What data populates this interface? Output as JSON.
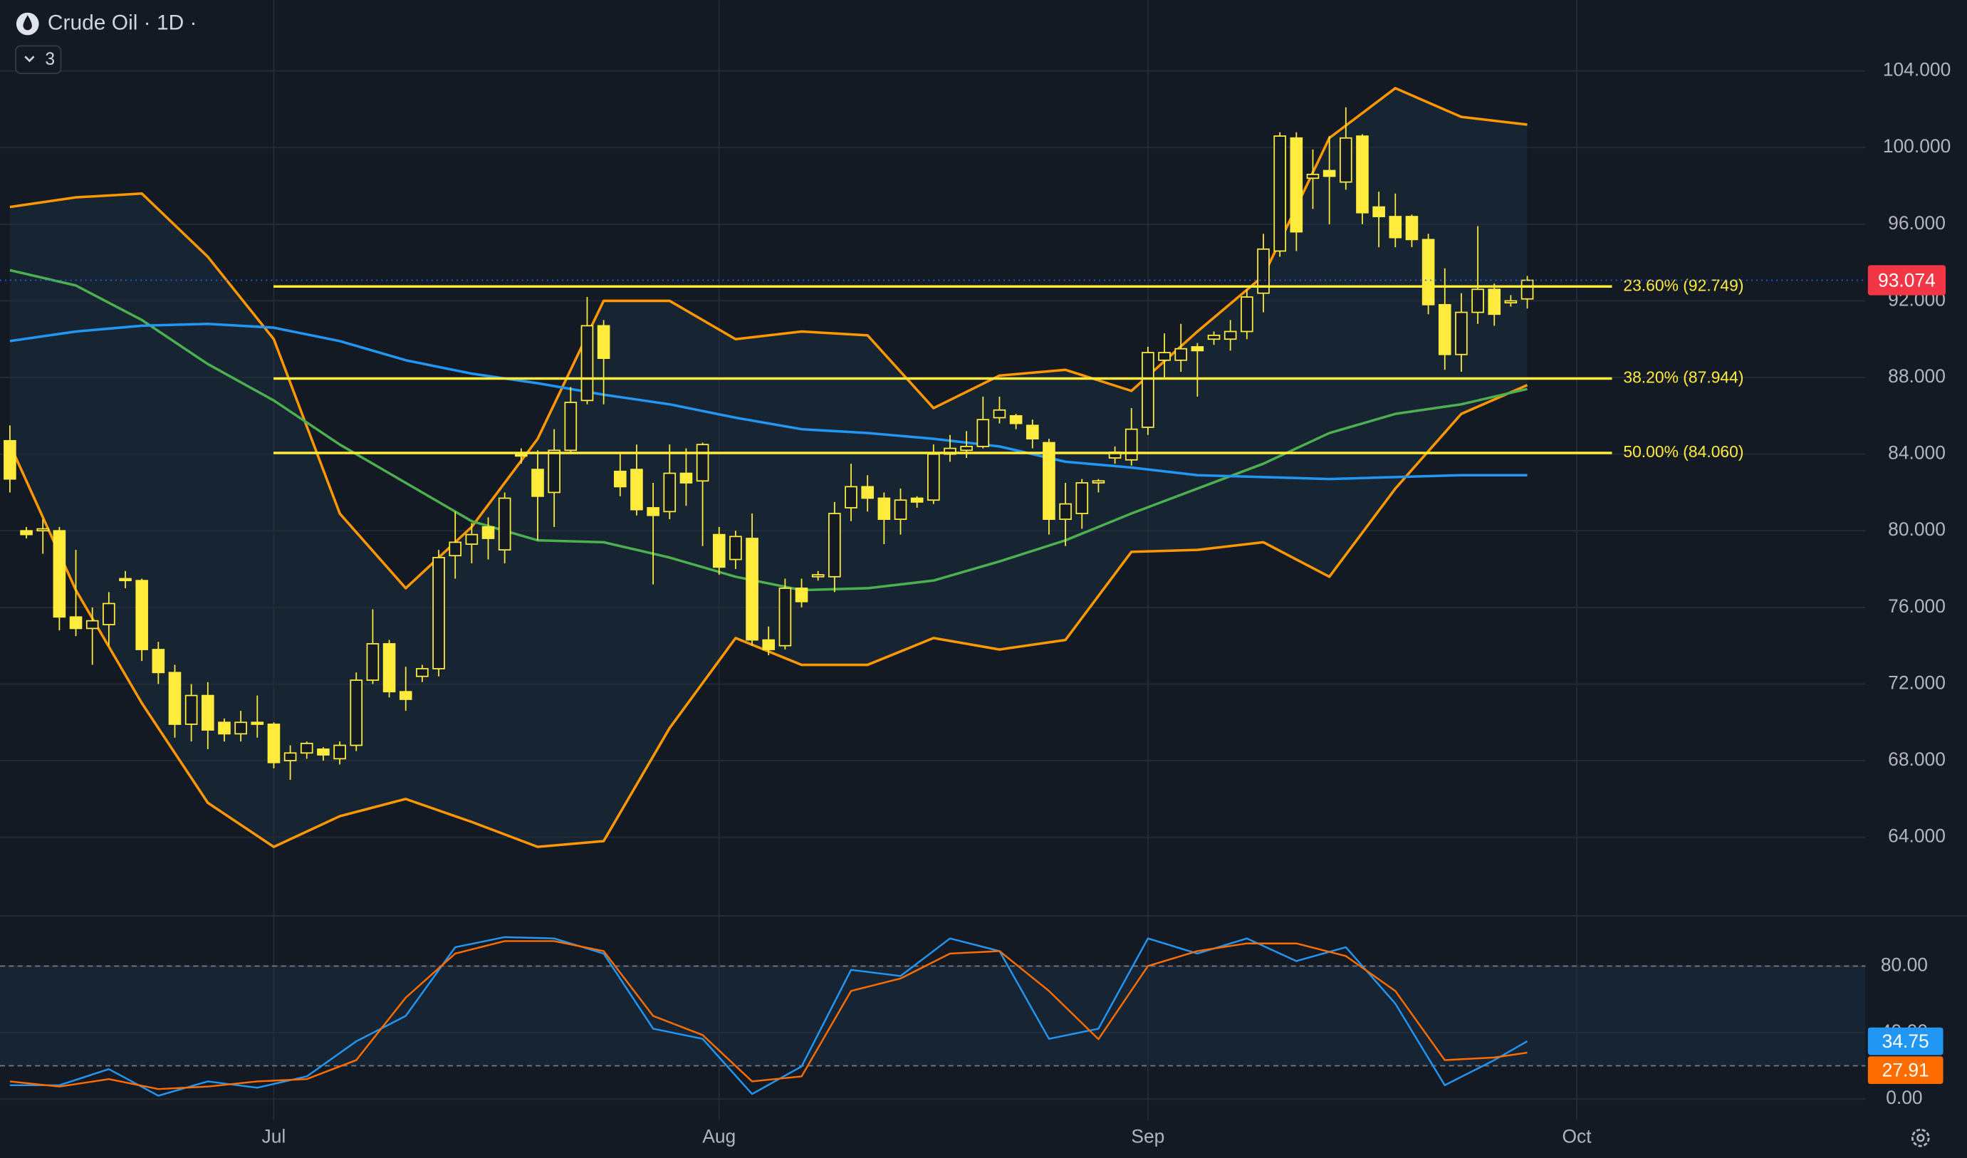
{
  "header": {
    "title": "Crude Oil · 1D ·",
    "indicators": 3
  },
  "chart_data": [
    {
      "type": "candlestick",
      "xlim": [
        -0.6,
        112.5
      ],
      "xticks": [
        {
          "value": 16,
          "label": "Jul"
        },
        {
          "value": 43,
          "label": "Aug"
        },
        {
          "value": 69,
          "label": "Sep"
        },
        {
          "value": 95,
          "label": "Oct"
        }
      ],
      "ylim": [
        59.9,
        107.7
      ],
      "yticks": [
        {
          "value": 64,
          "label": "64.000"
        },
        {
          "value": 68,
          "label": "68.000"
        },
        {
          "value": 72,
          "label": "72.000"
        },
        {
          "value": 76,
          "label": "76.000"
        },
        {
          "value": 80,
          "label": "80.000"
        },
        {
          "value": 84,
          "label": "84.000"
        },
        {
          "value": 88,
          "label": "88.000"
        },
        {
          "value": 92,
          "label": "92.000"
        },
        {
          "value": 96,
          "label": "96.000"
        },
        {
          "value": 100,
          "label": "100.000"
        },
        {
          "value": 104,
          "label": "104.000"
        }
      ],
      "grid": true,
      "up_color": "#131a24",
      "down_color": "#ffeb3b",
      "outline_color": "#ffeb3b",
      "open": [
        84.7,
        80.0,
        80.0,
        80.0,
        75.5,
        74.9,
        75.1,
        77.5,
        77.4,
        73.8,
        72.6,
        69.9,
        71.4,
        70.0,
        69.4,
        70.0,
        69.9,
        68.0,
        68.4,
        68.6,
        68.1,
        68.8,
        72.2,
        74.1,
        71.6,
        72.4,
        72.8,
        78.7,
        79.3,
        80.2,
        79.0,
        84.0,
        83.2,
        82.0,
        84.2,
        86.8,
        90.7,
        83.1,
        83.2,
        81.2,
        81.0,
        83.0,
        82.6,
        79.8,
        78.5,
        79.6,
        74.3,
        74.0,
        77.0,
        77.6,
        77.6,
        81.2,
        82.3,
        81.7,
        80.6,
        81.7,
        81.6,
        84.0,
        84.2,
        84.4,
        85.9,
        86.0,
        85.5,
        84.6,
        80.6,
        80.9,
        82.5,
        83.8,
        83.7,
        85.4,
        88.9,
        88.9,
        89.6,
        90.0,
        90.0,
        90.4,
        92.4,
        94.6,
        100.5,
        98.4,
        98.8,
        98.2,
        100.6,
        96.9,
        96.4,
        96.4,
        95.2,
        91.8,
        89.2,
        91.4,
        92.6,
        91.9,
        92.1
      ],
      "high": [
        85.5,
        80.2,
        80.6,
        80.2,
        79.0,
        76.0,
        76.8,
        77.9,
        77.5,
        74.2,
        73.0,
        72.0,
        72.1,
        70.2,
        70.6,
        71.4,
        70.0,
        68.8,
        69.0,
        68.7,
        69.0,
        72.6,
        75.9,
        74.3,
        72.9,
        73.0,
        79.0,
        81.0,
        80.4,
        80.7,
        82.0,
        84.3,
        84.2,
        85.3,
        87.5,
        92.2,
        91.0,
        84.0,
        84.5,
        82.5,
        84.5,
        84.3,
        84.6,
        80.2,
        80.0,
        80.9,
        75.0,
        77.5,
        77.5,
        77.9,
        81.5,
        83.5,
        82.9,
        82.0,
        82.2,
        81.8,
        84.5,
        85.0,
        85.2,
        87.0,
        87.0,
        86.1,
        85.8,
        84.8,
        82.5,
        82.7,
        82.7,
        84.4,
        86.4,
        89.6,
        90.3,
        90.8,
        89.8,
        90.4,
        91.0,
        92.6,
        95.5,
        100.8,
        100.8,
        99.9,
        100.6,
        102.1,
        100.7,
        97.7,
        97.6,
        96.5,
        95.5,
        93.7,
        92.4,
        95.9,
        92.9,
        92.3,
        93.3
      ],
      "low": [
        82.0,
        79.6,
        78.8,
        74.8,
        74.5,
        73.0,
        74.0,
        77.0,
        73.2,
        72.0,
        69.2,
        69.0,
        68.6,
        69.0,
        69.0,
        69.2,
        67.6,
        67.0,
        68.1,
        68.0,
        67.8,
        68.5,
        72.0,
        71.3,
        70.6,
        72.1,
        72.4,
        77.5,
        78.3,
        78.5,
        78.3,
        83.5,
        79.5,
        80.2,
        84.0,
        86.6,
        86.6,
        81.8,
        80.8,
        77.2,
        80.6,
        81.3,
        79.2,
        77.7,
        78.0,
        74.0,
        73.5,
        73.8,
        76.0,
        77.4,
        76.8,
        80.5,
        81.0,
        79.3,
        79.8,
        81.2,
        81.4,
        83.6,
        83.8,
        84.3,
        85.6,
        85.3,
        84.3,
        79.8,
        79.2,
        80.1,
        82.0,
        83.5,
        83.4,
        85.0,
        88.0,
        88.3,
        87.0,
        89.7,
        89.4,
        90.0,
        91.4,
        94.3,
        94.6,
        96.8,
        96.0,
        97.8,
        96.0,
        94.8,
        94.8,
        94.8,
        91.3,
        88.4,
        88.3,
        90.8,
        90.7,
        91.7,
        91.6
      ],
      "close": [
        82.7,
        79.8,
        80.1,
        75.5,
        74.9,
        75.3,
        76.2,
        77.4,
        73.8,
        72.6,
        69.9,
        71.4,
        69.6,
        69.4,
        70.0,
        69.9,
        67.9,
        68.4,
        68.9,
        68.3,
        68.8,
        72.2,
        74.1,
        71.6,
        71.2,
        72.8,
        78.6,
        79.4,
        79.8,
        79.6,
        81.7,
        83.9,
        81.8,
        84.2,
        86.7,
        90.7,
        89.0,
        82.3,
        81.1,
        80.8,
        83.0,
        82.5,
        84.5,
        78.1,
        79.7,
        74.3,
        73.8,
        77.0,
        76.3,
        77.7,
        80.9,
        82.3,
        81.7,
        80.6,
        81.6,
        81.5,
        84.0,
        84.3,
        84.4,
        85.8,
        86.3,
        85.6,
        84.8,
        80.6,
        81.4,
        82.5,
        82.6,
        84.1,
        85.3,
        89.3,
        89.3,
        89.5,
        89.4,
        90.2,
        90.4,
        92.2,
        94.7,
        100.6,
        95.6,
        98.6,
        98.5,
        100.5,
        96.6,
        96.4,
        95.3,
        95.2,
        91.8,
        89.2,
        91.4,
        92.6,
        91.3,
        92.0,
        93.074
      ],
      "last_color": "#f23645",
      "band_fill_color": "#172432",
      "series": [
        {
          "color": "#ff9800",
          "x": [
            0,
            4,
            8,
            12,
            16,
            20,
            24,
            28,
            32,
            36,
            40,
            44,
            48,
            52,
            56,
            60,
            64,
            68,
            72,
            76,
            80,
            84,
            88,
            92
          ],
          "values": [
            96.9,
            97.4,
            97.6,
            94.3,
            90.0,
            80.9,
            77.0,
            80.2,
            84.8,
            92.0,
            92.0,
            90.0,
            90.4,
            90.2,
            86.4,
            88.1,
            88.4,
            87.3,
            90.4,
            93.3,
            100.5,
            103.1,
            101.6,
            101.2
          ]
        },
        {
          "color": "#ff9800",
          "x": [
            0,
            4,
            8,
            12,
            16,
            20,
            24,
            28,
            32,
            36,
            40,
            44,
            48,
            52,
            56,
            60,
            64,
            68,
            72,
            76,
            80,
            84,
            88,
            92
          ],
          "values": [
            84.5,
            76.9,
            71.0,
            65.8,
            63.5,
            65.1,
            66.0,
            64.8,
            63.5,
            63.8,
            69.7,
            74.4,
            73.0,
            73.0,
            74.4,
            73.8,
            74.3,
            78.9,
            79.0,
            79.4,
            77.6,
            82.2,
            86.1,
            87.6
          ]
        },
        {
          "color": "#4caf50",
          "x": [
            0,
            4,
            8,
            12,
            16,
            20,
            24,
            28,
            32,
            36,
            40,
            44,
            48,
            52,
            56,
            60,
            64,
            68,
            72,
            76,
            80,
            84,
            88,
            92
          ],
          "values": [
            93.6,
            92.8,
            91.0,
            88.7,
            86.8,
            84.5,
            82.5,
            80.5,
            79.5,
            79.4,
            78.6,
            77.6,
            76.9,
            77.0,
            77.4,
            78.4,
            79.5,
            80.9,
            82.2,
            83.5,
            85.1,
            86.1,
            86.6,
            87.4
          ]
        },
        {
          "color": "#2196f3",
          "x": [
            0,
            4,
            8,
            12,
            16,
            20,
            24,
            28,
            32,
            36,
            40,
            44,
            48,
            52,
            56,
            60,
            64,
            68,
            72,
            76,
            80,
            84,
            88,
            92
          ],
          "values": [
            89.9,
            90.4,
            90.7,
            90.8,
            90.6,
            89.9,
            88.9,
            88.2,
            87.7,
            87.1,
            86.6,
            85.9,
            85.3,
            85.1,
            84.8,
            84.4,
            83.6,
            83.3,
            82.9,
            82.8,
            82.7,
            82.8,
            82.9,
            82.9
          ]
        }
      ],
      "levels_color": "#ffeb3b",
      "levels": [
        {
          "value": 92.749,
          "label": "23.60% (92.749)"
        },
        {
          "value": 87.944,
          "label": "38.20% (87.944)"
        },
        {
          "value": 84.06,
          "label": "50.00% (84.060)"
        }
      ]
    },
    {
      "type": "line",
      "ylim": [
        -12.8,
        110.2
      ],
      "yticks": [
        {
          "value": 0,
          "label": "0.00"
        },
        {
          "value": 40,
          "label": "40.00"
        },
        {
          "value": 80,
          "label": "80.00"
        }
      ],
      "bands": [
        20,
        80
      ],
      "band_fill_color": "#162433",
      "series": [
        {
          "color": "#2196f3",
          "x": [
            0,
            3,
            6,
            9,
            12,
            15,
            18,
            21,
            24,
            27,
            30,
            33,
            36,
            39,
            42,
            45,
            48,
            51,
            54,
            57,
            60,
            63,
            66,
            69,
            72,
            75,
            78,
            81,
            84,
            87,
            90,
            92
          ],
          "values": [
            8.3,
            8.3,
            18,
            2,
            10.6,
            6.8,
            13.6,
            34.7,
            50,
            91.3,
            97.4,
            96.6,
            87.5,
            42.3,
            36.2,
            3,
            19.6,
            77.7,
            74,
            96.6,
            89,
            36.2,
            42.3,
            96.6,
            87.5,
            96.6,
            83,
            91.3,
            57.4,
            8.3,
            23.4,
            34.75
          ]
        },
        {
          "color": "#ff6d00",
          "x": [
            0,
            3,
            6,
            9,
            12,
            15,
            18,
            21,
            24,
            27,
            30,
            33,
            36,
            39,
            42,
            45,
            48,
            51,
            54,
            57,
            60,
            63,
            66,
            69,
            72,
            75,
            78,
            81,
            84,
            87,
            90,
            92
          ],
          "values": [
            10.6,
            7.5,
            12,
            6,
            7.5,
            10.6,
            12,
            23.4,
            61,
            87.5,
            95,
            95,
            89,
            50,
            38.5,
            10.6,
            13.6,
            65,
            72.5,
            87.5,
            89,
            65,
            36,
            80,
            89,
            93.6,
            93.6,
            86,
            65,
            23.4,
            25,
            27.91
          ]
        }
      ]
    }
  ]
}
